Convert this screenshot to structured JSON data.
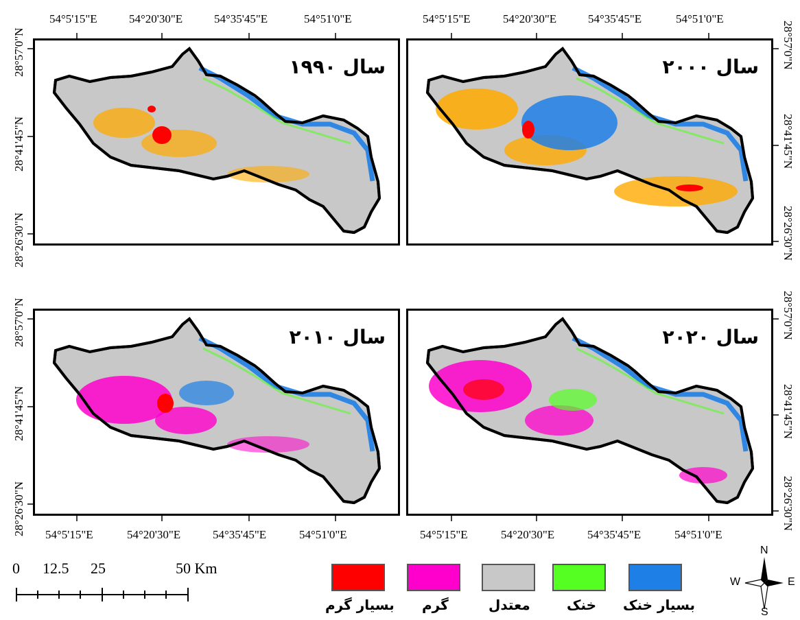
{
  "panels": [
    {
      "id": "p1990",
      "title": "سال ۱۹۹۰"
    },
    {
      "id": "p2000",
      "title": "سال ۲۰۰۰"
    },
    {
      "id": "p2010",
      "title": "سال ۲۰۱۰"
    },
    {
      "id": "p2020",
      "title": "سال ۲۰۲۰"
    }
  ],
  "axes": {
    "lon_ticks": [
      "54°5'15\"E",
      "54°20'30\"E",
      "54°35'45\"E",
      "54°51'0\"E"
    ],
    "lat_ticks": [
      "28°57'0\"N",
      "28°41'45\"N",
      "28°26'30\"N"
    ],
    "lat_ticks_right": [
      "28°57'0\"N",
      "28°41'45\"N",
      "28°26'30\"N"
    ]
  },
  "scale_bar": {
    "labels": [
      "0",
      "12.5",
      "25",
      "50 Km"
    ]
  },
  "legend": [
    {
      "label": "بسیار گرم",
      "color": "#ff0000"
    },
    {
      "label": "گرم",
      "color": "#ff00cc"
    },
    {
      "label": "معتدل",
      "color": "#c8c8c8"
    },
    {
      "label": "خنک",
      "color": "#55ff22"
    },
    {
      "label": "بسیار خنک",
      "color": "#1e7fe6"
    }
  ],
  "compass": {
    "n": "N",
    "s": "S",
    "e": "E",
    "w": "W"
  },
  "colors": {
    "very_hot": "#ff0000",
    "hot_orange": "#ffaa00",
    "hot_pink": "#ff00cc",
    "moderate": "#c8c8c8",
    "cool": "#55ff22",
    "very_cool": "#1e7fe6"
  }
}
